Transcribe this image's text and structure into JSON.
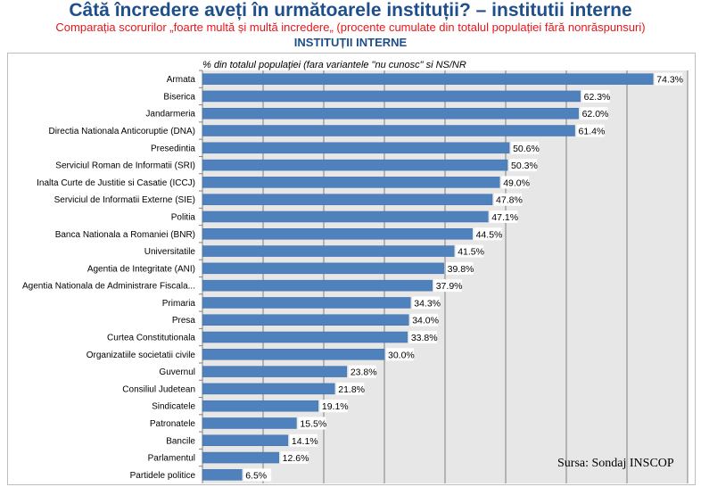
{
  "header": {
    "title": "Câtă încredere aveți în următoarele instituții? – institutii interne",
    "subtitle": "Comparația scorurilor „foarte multă și multă incredere„ (procente cumulate din totalul populației fără nonrăspunsuri)",
    "section": "INSTITUȚII INTERNE"
  },
  "source": "Sursa: Sondaj INSCOP",
  "chart_data": {
    "type": "bar",
    "orientation": "horizontal",
    "title": "% din totalul populaţiei (fara variantele \"nu cunosc\" si NS/NR",
    "categories": [
      "Armata",
      "Biserica",
      "Jandarmeria",
      "Directia Nationala Anticoruptie (DNA)",
      "Presedintia",
      "Serviciul Roman de Informatii (SRI)",
      "Inalta Curte de Justitie si Casatie (ICCJ)",
      "Serviciul de Informatii Externe (SIE)",
      "Politia",
      "Banca Nationala a Romaniei (BNR)",
      "Universitatile",
      "Agentia de Integritate (ANI)",
      "Agentia Nationala de Administrare Fiscala...",
      "Primaria",
      "Presa",
      "Curtea Constitutionala",
      "Organizatiile societatii civile",
      "Guvernul",
      "Consiliul Judetean",
      "Sindicatele",
      "Patronatele",
      "Bancile",
      "Parlamentul",
      "Partidele politice"
    ],
    "values": [
      74.3,
      62.3,
      62.0,
      61.4,
      50.6,
      50.3,
      49.0,
      47.8,
      47.1,
      44.5,
      41.5,
      39.8,
      37.9,
      34.3,
      34.0,
      33.8,
      30.0,
      23.8,
      21.8,
      19.1,
      15.5,
      14.1,
      12.6,
      6.5
    ],
    "labels": [
      "74.3%",
      "62.3%",
      "62.0%",
      "61.4%",
      "50.6%",
      "50.3%",
      "49.0%",
      "47.8%",
      "47.1%",
      "44.5%",
      "41.5%",
      "39.8%",
      "37.9%",
      "34.3%",
      "34.0%",
      "33.8%",
      "30.0%",
      "23.8%",
      "21.8%",
      "19.1%",
      "15.5%",
      "14.1%",
      "12.6%",
      "6.5%"
    ],
    "xlim": [
      0,
      80
    ],
    "grid": true,
    "colors": {
      "bar": "#4f81bd",
      "bar_edge": "#3a6ea8",
      "plot_bg": "#e7e7e7",
      "grid": "#7f7f7f",
      "axis": "#7f7f7f"
    }
  }
}
